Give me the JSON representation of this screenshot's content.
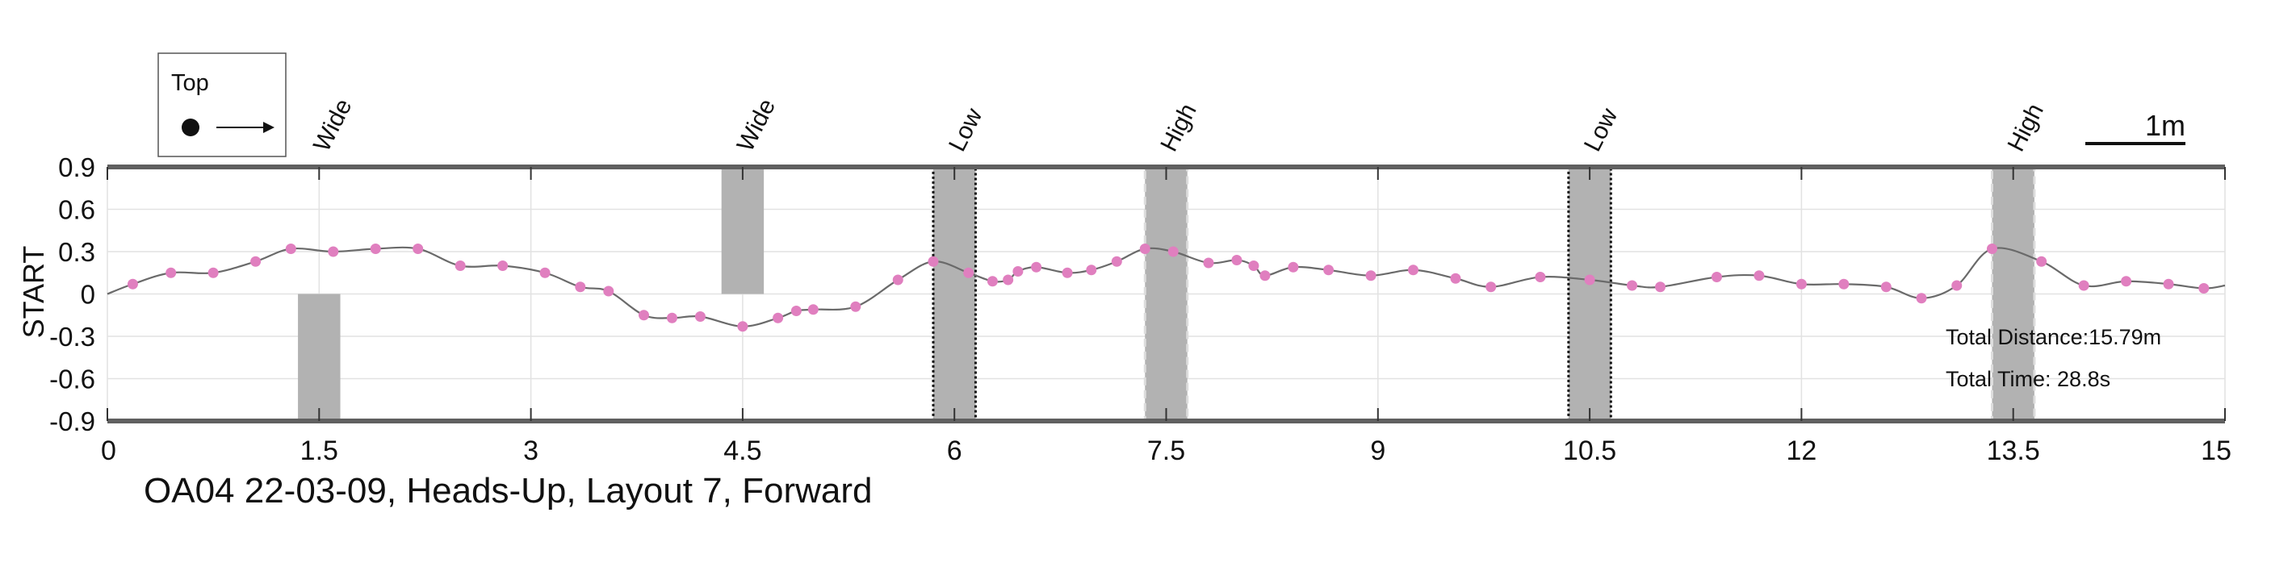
{
  "chart_data": {
    "type": "line",
    "title": "OA04 22-03-09, Heads-Up, Layout 7, Forward",
    "xlabel": "",
    "ylabel": "START",
    "xlim": [
      0,
      15
    ],
    "ylim": [
      -0.9,
      0.9
    ],
    "x_ticks": [
      0,
      1.5,
      3,
      4.5,
      6,
      7.5,
      9,
      10.5,
      12,
      13.5,
      15
    ],
    "x_tick_labels": [
      "0",
      "1.5",
      "3",
      "4.5",
      "6",
      "7.5",
      "9",
      "10.5",
      "12",
      "13.5",
      "15"
    ],
    "y_ticks": [
      0.9,
      0.6,
      0.3,
      0,
      -0.3,
      -0.6,
      -0.9
    ],
    "y_tick_labels": [
      "0.9",
      "0.6",
      "0.3",
      "0",
      "-0.3",
      "-0.6",
      "-0.9"
    ],
    "grid": true,
    "legend": {
      "label": "Top",
      "placement": "top-left"
    },
    "scale_bar_label": "1m",
    "annotations": {
      "total_distance": "Total Distance:15.79m",
      "total_time": "Total Time: 28.8s"
    },
    "obstacles": [
      {
        "label": "Wide",
        "x_start": 1.35,
        "x_end": 1.65,
        "y_start": -0.9,
        "y_end": 0.0,
        "style": "solid"
      },
      {
        "label": "Wide",
        "x_start": 4.35,
        "x_end": 4.65,
        "y_start": 0.0,
        "y_end": 0.9,
        "style": "solid"
      },
      {
        "label": "Low",
        "x_start": 5.85,
        "x_end": 6.15,
        "y_start": -0.9,
        "y_end": 0.9,
        "style": "dotted"
      },
      {
        "label": "High",
        "x_start": 7.35,
        "x_end": 7.65,
        "y_start": -0.9,
        "y_end": 0.9,
        "style": "dashed"
      },
      {
        "label": "Low",
        "x_start": 10.35,
        "x_end": 10.65,
        "y_start": -0.9,
        "y_end": 0.9,
        "style": "dotted"
      },
      {
        "label": "High",
        "x_start": 13.35,
        "x_end": 13.65,
        "y_start": -0.9,
        "y_end": 0.9,
        "style": "dashed"
      }
    ],
    "series": [
      {
        "points": [
          {
            "x": 0.0,
            "y": 0.0
          },
          {
            "x": 0.18,
            "y": 0.07
          },
          {
            "x": 0.45,
            "y": 0.15
          },
          {
            "x": 0.75,
            "y": 0.15
          },
          {
            "x": 1.05,
            "y": 0.23
          },
          {
            "x": 1.3,
            "y": 0.32
          },
          {
            "x": 1.6,
            "y": 0.3
          },
          {
            "x": 1.9,
            "y": 0.32
          },
          {
            "x": 2.2,
            "y": 0.32
          },
          {
            "x": 2.5,
            "y": 0.2
          },
          {
            "x": 2.8,
            "y": 0.2
          },
          {
            "x": 3.1,
            "y": 0.15
          },
          {
            "x": 3.35,
            "y": 0.05
          },
          {
            "x": 3.55,
            "y": 0.02
          },
          {
            "x": 3.8,
            "y": -0.15
          },
          {
            "x": 4.0,
            "y": -0.17
          },
          {
            "x": 4.2,
            "y": -0.16
          },
          {
            "x": 4.5,
            "y": -0.23
          },
          {
            "x": 4.75,
            "y": -0.17
          },
          {
            "x": 4.88,
            "y": -0.12
          },
          {
            "x": 5.0,
            "y": -0.11
          },
          {
            "x": 5.3,
            "y": -0.09
          },
          {
            "x": 5.6,
            "y": 0.1
          },
          {
            "x": 5.85,
            "y": 0.23
          },
          {
            "x": 6.1,
            "y": 0.15
          },
          {
            "x": 6.27,
            "y": 0.09
          },
          {
            "x": 6.38,
            "y": 0.1
          },
          {
            "x": 6.45,
            "y": 0.16
          },
          {
            "x": 6.58,
            "y": 0.19
          },
          {
            "x": 6.8,
            "y": 0.15
          },
          {
            "x": 6.97,
            "y": 0.17
          },
          {
            "x": 7.15,
            "y": 0.23
          },
          {
            "x": 7.35,
            "y": 0.32
          },
          {
            "x": 7.55,
            "y": 0.3
          },
          {
            "x": 7.8,
            "y": 0.22
          },
          {
            "x": 8.0,
            "y": 0.24
          },
          {
            "x": 8.12,
            "y": 0.2
          },
          {
            "x": 8.2,
            "y": 0.13
          },
          {
            "x": 8.4,
            "y": 0.19
          },
          {
            "x": 8.65,
            "y": 0.17
          },
          {
            "x": 8.95,
            "y": 0.13
          },
          {
            "x": 9.25,
            "y": 0.17
          },
          {
            "x": 9.55,
            "y": 0.11
          },
          {
            "x": 9.8,
            "y": 0.05
          },
          {
            "x": 10.15,
            "y": 0.12
          },
          {
            "x": 10.5,
            "y": 0.1
          },
          {
            "x": 10.8,
            "y": 0.06
          },
          {
            "x": 11.0,
            "y": 0.05
          },
          {
            "x": 11.4,
            "y": 0.12
          },
          {
            "x": 11.7,
            "y": 0.13
          },
          {
            "x": 12.0,
            "y": 0.07
          },
          {
            "x": 12.3,
            "y": 0.07
          },
          {
            "x": 12.6,
            "y": 0.05
          },
          {
            "x": 12.85,
            "y": -0.03
          },
          {
            "x": 13.1,
            "y": 0.06
          },
          {
            "x": 13.35,
            "y": 0.32
          },
          {
            "x": 13.7,
            "y": 0.23
          },
          {
            "x": 14.0,
            "y": 0.06
          },
          {
            "x": 14.3,
            "y": 0.09
          },
          {
            "x": 14.6,
            "y": 0.07
          },
          {
            "x": 14.85,
            "y": 0.04
          },
          {
            "x": 15.0,
            "y": 0.06
          }
        ],
        "marker_color": "#e07fbf",
        "line_color": "#6a6a6a"
      }
    ]
  },
  "colors": {
    "obstacle_fill": "#b2b2b2",
    "grid": "#e2e2e2",
    "frame": "#606060",
    "text": "#111111"
  }
}
